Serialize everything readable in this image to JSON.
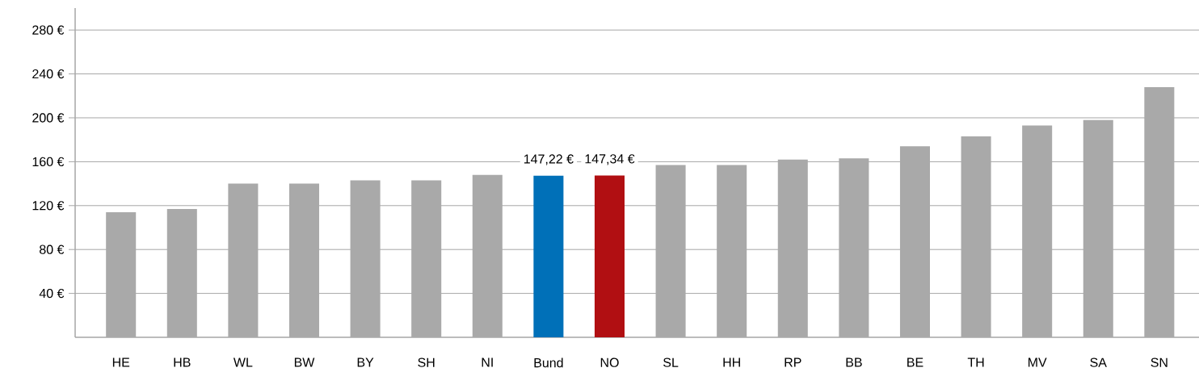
{
  "chart_data": {
    "type": "bar",
    "categories": [
      "HE",
      "HB",
      "WL",
      "BW",
      "BY",
      "SH",
      "NI",
      "Bund",
      "NO",
      "SL",
      "HH",
      "RP",
      "BB",
      "BE",
      "TH",
      "MV",
      "SA",
      "SN"
    ],
    "values": [
      114,
      117,
      140,
      140,
      143,
      143,
      148,
      147.22,
      147.34,
      157,
      157,
      162,
      163,
      174,
      183,
      193,
      198,
      228
    ],
    "colors": [
      "#a9a9a9",
      "#a9a9a9",
      "#a9a9a9",
      "#a9a9a9",
      "#a9a9a9",
      "#a9a9a9",
      "#a9a9a9",
      "#0070b8",
      "#b10f12",
      "#a9a9a9",
      "#a9a9a9",
      "#a9a9a9",
      "#a9a9a9",
      "#a9a9a9",
      "#a9a9a9",
      "#a9a9a9",
      "#a9a9a9",
      "#a9a9a9"
    ],
    "value_labels": [
      null,
      null,
      null,
      null,
      null,
      null,
      null,
      "147,22 €",
      "147,34 €",
      null,
      null,
      null,
      null,
      null,
      null,
      null,
      null,
      null
    ],
    "ylim": [
      0,
      300
    ],
    "yticks": [
      {
        "value": 40,
        "label": "40 €"
      },
      {
        "value": 80,
        "label": "80 €"
      },
      {
        "value": 120,
        "label": "120 €"
      },
      {
        "value": 160,
        "label": "160 €"
      },
      {
        "value": 200,
        "label": "200 €"
      },
      {
        "value": 240,
        "label": "240 €"
      },
      {
        "value": 280,
        "label": "280 €"
      }
    ],
    "grid": "y"
  }
}
